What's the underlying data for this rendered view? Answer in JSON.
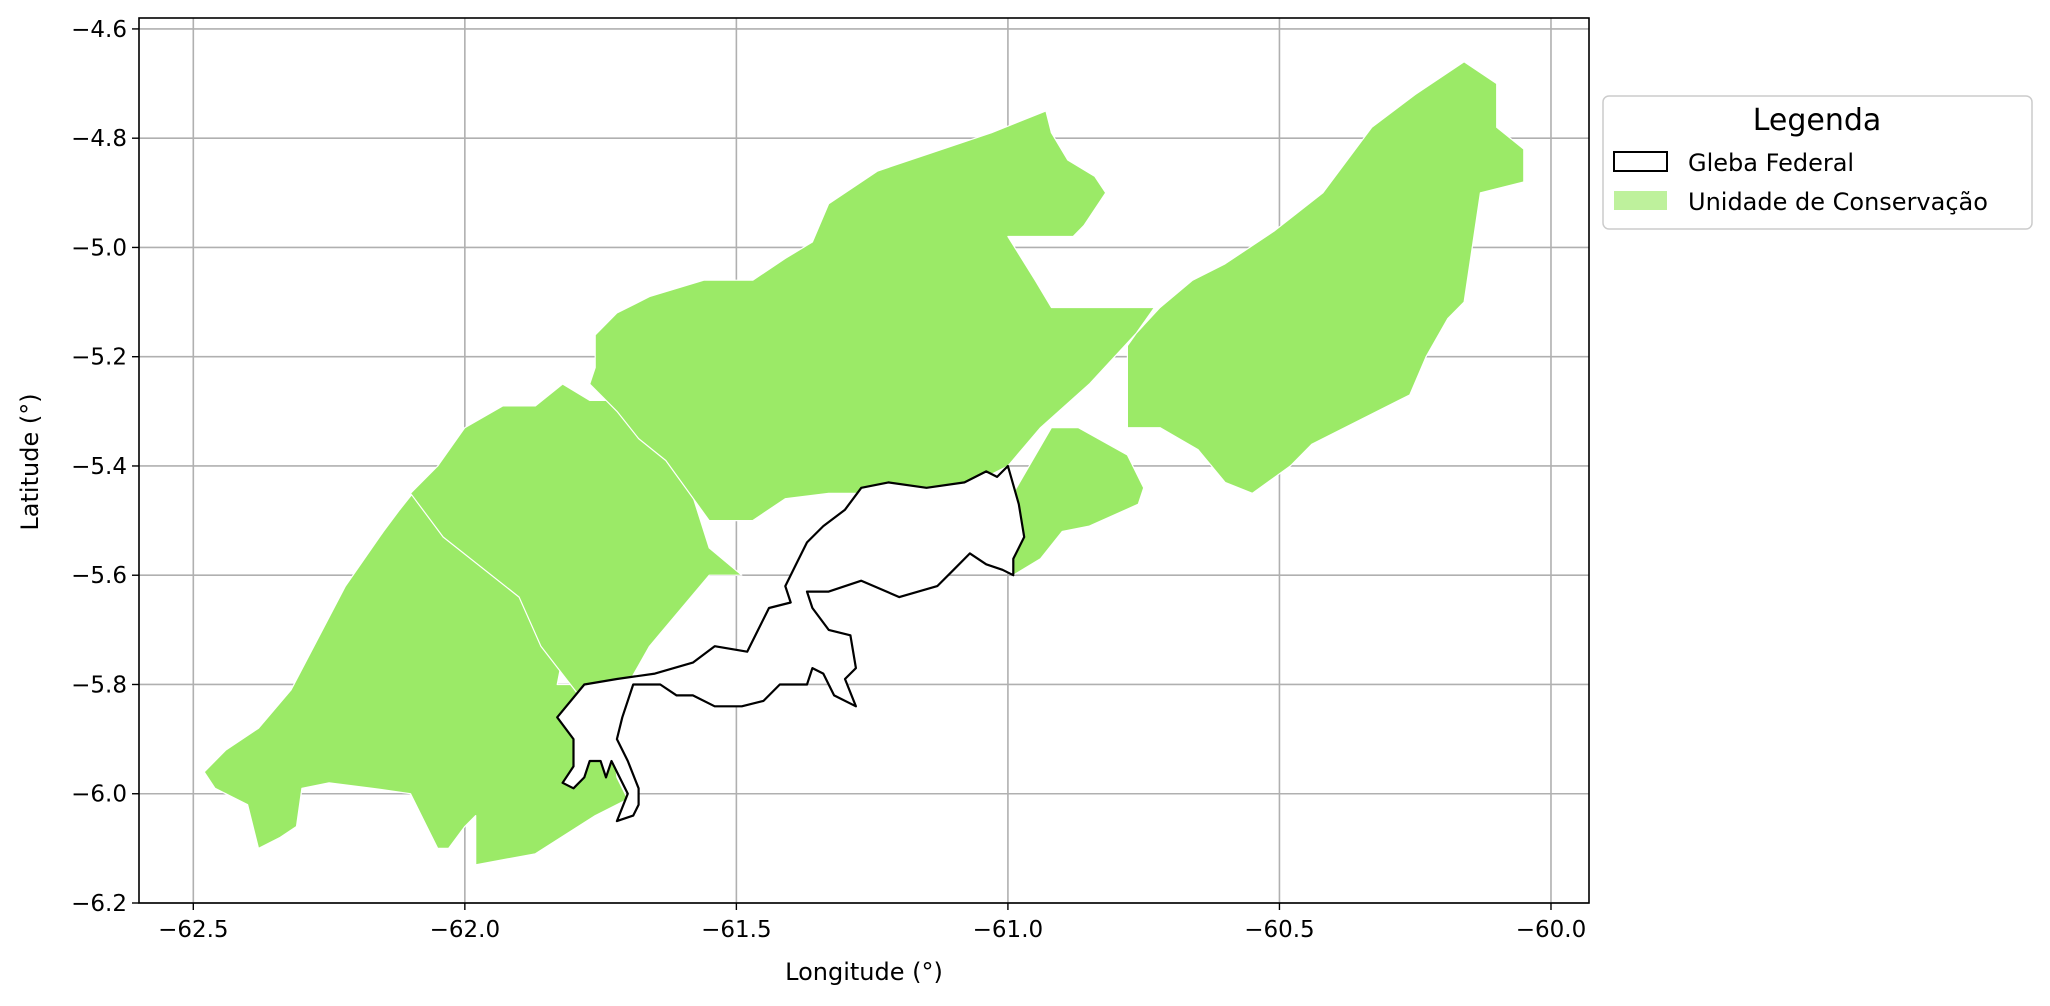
{
  "chart_data": {
    "type": "map",
    "title": "",
    "xlabel": "Longitude (°)",
    "ylabel": "Latitude (°)",
    "xlim": [
      -62.6,
      -59.93
    ],
    "ylim": [
      -6.2,
      -4.58
    ],
    "xticks": [
      -62.5,
      -62.0,
      -61.5,
      -61.0,
      -60.5,
      -60.0
    ],
    "xtick_labels": [
      "−62.5",
      "−62.0",
      "−61.5",
      "−61.0",
      "−60.5",
      "−60.0"
    ],
    "yticks": [
      -4.6,
      -4.8,
      -5.0,
      -5.2,
      -5.4,
      -5.6,
      -5.8,
      -6.0,
      -6.2
    ],
    "ytick_labels": [
      "−4.6",
      "−4.8",
      "−5.0",
      "−5.2",
      "−5.4",
      "−5.6",
      "−5.8",
      "−6.0",
      "−6.2"
    ],
    "grid": true,
    "legend": {
      "title": "Legenda",
      "placement": "outside-right-top",
      "items": [
        {
          "label": "Gleba Federal",
          "style": "outline",
          "color": "#000000"
        },
        {
          "label": "Unidade de Conservação",
          "style": "fill",
          "color": "#9bea67"
        }
      ]
    },
    "conservation_color": "#9bea67",
    "layers": {
      "unidade_de_conservacao": [
        [
          [
            -62.48,
            -5.96
          ],
          [
            -62.46,
            -5.99
          ],
          [
            -62.4,
            -6.02
          ],
          [
            -62.38,
            -6.1
          ],
          [
            -62.34,
            -6.08
          ],
          [
            -62.31,
            -6.06
          ],
          [
            -62.3,
            -5.99
          ],
          [
            -62.25,
            -5.98
          ],
          [
            -62.17,
            -5.99
          ],
          [
            -62.1,
            -6.0
          ],
          [
            -62.07,
            -6.06
          ],
          [
            -62.05,
            -6.1
          ],
          [
            -62.03,
            -6.1
          ],
          [
            -62.0,
            -6.06
          ],
          [
            -61.98,
            -6.04
          ],
          [
            -61.98,
            -6.13
          ],
          [
            -61.87,
            -6.11
          ],
          [
            -61.76,
            -6.04
          ],
          [
            -61.7,
            -6.01
          ],
          [
            -61.72,
            -5.97
          ],
          [
            -61.73,
            -5.86
          ],
          [
            -61.79,
            -5.8
          ],
          [
            -61.83,
            -5.8
          ],
          [
            -61.82,
            -5.75
          ],
          [
            -61.8,
            -5.7
          ],
          [
            -61.78,
            -5.68
          ],
          [
            -61.84,
            -5.68
          ],
          [
            -61.92,
            -5.62
          ],
          [
            -61.95,
            -5.56
          ],
          [
            -61.99,
            -5.46
          ],
          [
            -62.08,
            -5.43
          ],
          [
            -62.12,
            -5.48
          ],
          [
            -62.15,
            -5.52
          ],
          [
            -62.22,
            -5.62
          ],
          [
            -62.32,
            -5.81
          ],
          [
            -62.38,
            -5.88
          ],
          [
            -62.44,
            -5.92
          ]
        ],
        [
          [
            -62.1,
            -5.45
          ],
          [
            -62.05,
            -5.4
          ],
          [
            -62.0,
            -5.33
          ],
          [
            -61.93,
            -5.29
          ],
          [
            -61.87,
            -5.29
          ],
          [
            -61.82,
            -5.25
          ],
          [
            -61.77,
            -5.28
          ],
          [
            -61.72,
            -5.28
          ],
          [
            -61.63,
            -5.3
          ],
          [
            -61.55,
            -5.55
          ],
          [
            -61.49,
            -5.6
          ],
          [
            -61.55,
            -5.6
          ],
          [
            -61.66,
            -5.73
          ],
          [
            -61.7,
            -5.8
          ],
          [
            -61.79,
            -5.82
          ],
          [
            -61.86,
            -5.73
          ],
          [
            -61.9,
            -5.64
          ],
          [
            -62.04,
            -5.53
          ]
        ],
        [
          [
            -61.77,
            -5.25
          ],
          [
            -61.76,
            -5.22
          ],
          [
            -61.76,
            -5.16
          ],
          [
            -61.72,
            -5.12
          ],
          [
            -61.66,
            -5.09
          ],
          [
            -61.56,
            -5.06
          ],
          [
            -61.47,
            -5.06
          ],
          [
            -61.41,
            -5.02
          ],
          [
            -61.36,
            -4.99
          ],
          [
            -61.33,
            -4.92
          ],
          [
            -61.24,
            -4.86
          ],
          [
            -61.15,
            -4.83
          ],
          [
            -61.03,
            -4.79
          ],
          [
            -60.93,
            -4.75
          ],
          [
            -60.92,
            -4.79
          ],
          [
            -60.89,
            -4.84
          ],
          [
            -60.84,
            -4.87
          ],
          [
            -60.82,
            -4.9
          ],
          [
            -60.84,
            -4.93
          ],
          [
            -60.86,
            -4.96
          ],
          [
            -60.88,
            -4.98
          ],
          [
            -60.93,
            -4.98
          ],
          [
            -61.0,
            -4.98
          ],
          [
            -60.95,
            -5.06
          ],
          [
            -60.92,
            -5.11
          ],
          [
            -60.73,
            -5.11
          ],
          [
            -60.78,
            -5.18
          ],
          [
            -60.78,
            -5.33
          ],
          [
            -60.72,
            -5.33
          ],
          [
            -60.65,
            -5.37
          ],
          [
            -60.6,
            -5.43
          ],
          [
            -60.55,
            -5.45
          ],
          [
            -60.48,
            -5.4
          ],
          [
            -60.44,
            -5.36
          ],
          [
            -60.32,
            -5.3
          ],
          [
            -60.26,
            -5.27
          ],
          [
            -60.23,
            -5.2
          ],
          [
            -60.19,
            -5.13
          ],
          [
            -60.16,
            -5.1
          ],
          [
            -60.13,
            -4.9
          ],
          [
            -60.05,
            -4.88
          ],
          [
            -60.05,
            -4.82
          ],
          [
            -60.1,
            -4.78
          ],
          [
            -60.1,
            -4.7
          ],
          [
            -60.16,
            -4.66
          ],
          [
            -60.25,
            -4.72
          ],
          [
            -60.33,
            -4.78
          ],
          [
            -60.42,
            -4.9
          ],
          [
            -60.51,
            -4.97
          ],
          [
            -60.6,
            -5.03
          ],
          [
            -60.66,
            -5.06
          ],
          [
            -60.72,
            -5.11
          ],
          [
            -60.85,
            -5.25
          ],
          [
            -60.94,
            -5.33
          ],
          [
            -61.0,
            -5.4
          ],
          [
            -61.06,
            -5.43
          ],
          [
            -61.17,
            -5.45
          ],
          [
            -61.25,
            -5.45
          ],
          [
            -61.33,
            -5.45
          ],
          [
            -61.41,
            -5.46
          ],
          [
            -61.47,
            -5.5
          ],
          [
            -61.55,
            -5.5
          ],
          [
            -61.63,
            -5.39
          ],
          [
            -61.68,
            -5.35
          ],
          [
            -61.72,
            -5.3
          ]
        ],
        [
          [
            -60.99,
            -5.6
          ],
          [
            -60.94,
            -5.57
          ],
          [
            -60.9,
            -5.52
          ],
          [
            -60.85,
            -5.51
          ],
          [
            -60.76,
            -5.47
          ],
          [
            -60.75,
            -5.44
          ],
          [
            -60.78,
            -5.38
          ],
          [
            -60.87,
            -5.33
          ],
          [
            -60.92,
            -5.33
          ],
          [
            -60.99,
            -5.45
          ]
        ]
      ],
      "gleba_federal": [
        [
          [
            -61.78,
            -5.8
          ],
          [
            -61.83,
            -5.86
          ],
          [
            -61.8,
            -5.9
          ],
          [
            -61.8,
            -5.95
          ],
          [
            -61.82,
            -5.98
          ],
          [
            -61.8,
            -5.99
          ],
          [
            -61.78,
            -5.97
          ],
          [
            -61.77,
            -5.94
          ],
          [
            -61.75,
            -5.94
          ],
          [
            -61.74,
            -5.97
          ],
          [
            -61.73,
            -5.94
          ],
          [
            -61.72,
            -5.96
          ],
          [
            -61.7,
            -6.0
          ],
          [
            -61.72,
            -6.05
          ],
          [
            -61.69,
            -6.04
          ],
          [
            -61.68,
            -6.02
          ],
          [
            -61.68,
            -5.99
          ],
          [
            -61.7,
            -5.94
          ],
          [
            -61.72,
            -5.9
          ],
          [
            -61.71,
            -5.86
          ],
          [
            -61.69,
            -5.8
          ],
          [
            -61.64,
            -5.8
          ],
          [
            -61.61,
            -5.82
          ],
          [
            -61.58,
            -5.82
          ],
          [
            -61.54,
            -5.84
          ],
          [
            -61.49,
            -5.84
          ],
          [
            -61.45,
            -5.83
          ],
          [
            -61.42,
            -5.8
          ],
          [
            -61.37,
            -5.8
          ],
          [
            -61.36,
            -5.77
          ],
          [
            -61.34,
            -5.78
          ],
          [
            -61.32,
            -5.82
          ],
          [
            -61.28,
            -5.84
          ],
          [
            -61.3,
            -5.79
          ],
          [
            -61.28,
            -5.77
          ],
          [
            -61.29,
            -5.71
          ],
          [
            -61.33,
            -5.7
          ],
          [
            -61.36,
            -5.66
          ],
          [
            -61.37,
            -5.63
          ],
          [
            -61.33,
            -5.63
          ],
          [
            -61.27,
            -5.61
          ],
          [
            -61.2,
            -5.64
          ],
          [
            -61.13,
            -5.62
          ],
          [
            -61.1,
            -5.59
          ],
          [
            -61.07,
            -5.56
          ],
          [
            -61.04,
            -5.58
          ],
          [
            -61.01,
            -5.59
          ],
          [
            -60.99,
            -5.6
          ],
          [
            -60.99,
            -5.57
          ],
          [
            -60.97,
            -5.53
          ],
          [
            -60.98,
            -5.47
          ],
          [
            -61.0,
            -5.4
          ],
          [
            -61.02,
            -5.42
          ],
          [
            -61.04,
            -5.41
          ],
          [
            -61.08,
            -5.43
          ],
          [
            -61.15,
            -5.44
          ],
          [
            -61.22,
            -5.43
          ],
          [
            -61.27,
            -5.44
          ],
          [
            -61.3,
            -5.48
          ],
          [
            -61.34,
            -5.51
          ],
          [
            -61.37,
            -5.54
          ],
          [
            -61.39,
            -5.58
          ],
          [
            -61.41,
            -5.62
          ],
          [
            -61.4,
            -5.65
          ],
          [
            -61.44,
            -5.66
          ],
          [
            -61.46,
            -5.7
          ],
          [
            -61.48,
            -5.74
          ],
          [
            -61.54,
            -5.73
          ],
          [
            -61.58,
            -5.76
          ],
          [
            -61.65,
            -5.78
          ],
          [
            -61.72,
            -5.79
          ]
        ]
      ]
    }
  }
}
